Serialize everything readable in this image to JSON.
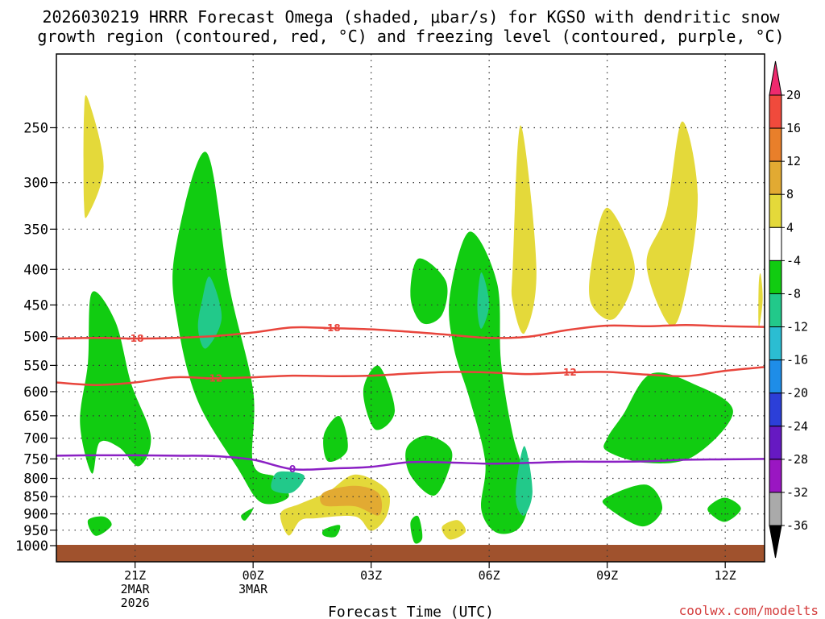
{
  "chart_data": {
    "type": "contour",
    "title_line1": "2026030219 HRRR Forecast Omega (shaded, μbar/s) for KGSO with dendritic snow",
    "title_line2": "growth region (contoured, red, °C) and freezing level (contoured, purple, °C)",
    "xlabel": "Forecast Time (UTC)",
    "credit": "coolwx.com/modelts",
    "x_range_hours": [
      0,
      18
    ],
    "y_axis": "pressure_hPa",
    "y_range": [
      200,
      1000
    ],
    "y_ticks": [
      250,
      300,
      350,
      400,
      450,
      500,
      550,
      600,
      650,
      700,
      750,
      800,
      850,
      900,
      950,
      1000
    ],
    "x_ticks": [
      {
        "hour": 2,
        "lines": [
          "21Z",
          "2MAR",
          "2026"
        ]
      },
      {
        "hour": 5,
        "lines": [
          "00Z",
          "3MAR"
        ]
      },
      {
        "hour": 8,
        "lines": [
          "03Z"
        ]
      },
      {
        "hour": 11,
        "lines": [
          "06Z"
        ]
      },
      {
        "hour": 14,
        "lines": [
          "09Z"
        ]
      },
      {
        "hour": 17,
        "lines": [
          "12Z"
        ]
      }
    ],
    "colorbar": {
      "labels": [
        "20",
        "16",
        "12",
        "8",
        "4",
        "-4",
        "-8",
        "-12",
        "-16",
        "-20",
        "-24",
        "-28",
        "-32",
        "-36"
      ],
      "colors": [
        "#ee2a6e",
        "#f04a3c",
        "#e97f2a",
        "#e2aa32",
        "#e4d93a",
        "#ffffff",
        "#11cc11",
        "#22c98a",
        "#2bbdd2",
        "#1e8de8",
        "#2c3fd8",
        "#6619c2",
        "#9a16c2",
        "#aaaaaa",
        "#000000"
      ]
    },
    "contours": [
      {
        "name": "dendritic growth -18C",
        "label": "-18",
        "color": "#e8453c",
        "points": [
          [
            0,
            503
          ],
          [
            1,
            502
          ],
          [
            2,
            503
          ],
          [
            3,
            502
          ],
          [
            4,
            499
          ],
          [
            5,
            493
          ],
          [
            6,
            485
          ],
          [
            7,
            486
          ],
          [
            8,
            488
          ],
          [
            9,
            492
          ],
          [
            10,
            497
          ],
          [
            11,
            502
          ],
          [
            12,
            500
          ],
          [
            13,
            489
          ],
          [
            14,
            482
          ],
          [
            15,
            483
          ],
          [
            16,
            481
          ],
          [
            17,
            483
          ],
          [
            18,
            484
          ]
        ]
      },
      {
        "name": "dendritic growth -12C",
        "label": "-12",
        "color": "#e8453c",
        "points": [
          [
            0,
            582
          ],
          [
            1,
            587
          ],
          [
            2,
            582
          ],
          [
            3,
            572
          ],
          [
            4,
            574
          ],
          [
            5,
            572
          ],
          [
            6,
            569
          ],
          [
            7,
            570
          ],
          [
            8,
            569
          ],
          [
            9,
            565
          ],
          [
            10,
            562
          ],
          [
            11,
            563
          ],
          [
            12,
            566
          ],
          [
            13,
            563
          ],
          [
            14,
            562
          ],
          [
            15,
            567
          ],
          [
            16,
            570
          ],
          [
            17,
            560
          ],
          [
            18,
            553
          ]
        ]
      },
      {
        "name": "freezing level 0C",
        "label": "0",
        "color": "#8b20c4",
        "points": [
          [
            0,
            742
          ],
          [
            1,
            741
          ],
          [
            2,
            741
          ],
          [
            3,
            742
          ],
          [
            4,
            743
          ],
          [
            5,
            752
          ],
          [
            6,
            776
          ],
          [
            7,
            774
          ],
          [
            8,
            770
          ],
          [
            9,
            758
          ],
          [
            10,
            759
          ],
          [
            11,
            762
          ],
          [
            12,
            760
          ],
          [
            13,
            757
          ],
          [
            14,
            757
          ],
          [
            15,
            756
          ],
          [
            16,
            752
          ],
          [
            17,
            751
          ],
          [
            18,
            750
          ]
        ]
      }
    ],
    "shaded_regions": [
      {
        "omega": "4",
        "color": "#e4d93a",
        "points": [
          [
            0.7,
            240
          ],
          [
            0.8,
            227
          ],
          [
            1.2,
            284
          ],
          [
            0.8,
            334
          ],
          [
            0.7,
            320
          ]
        ]
      },
      {
        "omega": "-4",
        "color": "#11cc11",
        "points": [
          [
            0.6,
            665
          ],
          [
            0.8,
            546
          ],
          [
            0.9,
            432
          ],
          [
            1.5,
            476
          ],
          [
            1.9,
            584
          ],
          [
            2.4,
            696
          ],
          [
            2.1,
            768
          ],
          [
            1.6,
            722
          ],
          [
            1.1,
            710
          ],
          [
            0.9,
            787
          ]
        ]
      },
      {
        "omega": "-4",
        "color": "#11cc11",
        "points": [
          [
            3.0,
            382
          ],
          [
            3.8,
            271
          ],
          [
            4.4,
            425
          ],
          [
            5.0,
            598
          ],
          [
            5.0,
            762
          ],
          [
            5.6,
            798
          ],
          [
            5.9,
            851
          ],
          [
            5.2,
            866
          ],
          [
            4.6,
            772
          ],
          [
            3.6,
            620
          ],
          [
            3.1,
            484
          ]
        ]
      },
      {
        "omega": "-8",
        "color": "#22c98a",
        "points": [
          [
            3.7,
            444
          ],
          [
            3.9,
            410
          ],
          [
            4.2,
            470
          ],
          [
            3.8,
            520
          ],
          [
            3.6,
            487
          ]
        ]
      },
      {
        "omega": "-4",
        "color": "#11cc11",
        "points": [
          [
            6.8,
            692
          ],
          [
            7.2,
            651
          ],
          [
            7.4,
            727
          ],
          [
            6.9,
            756
          ]
        ]
      },
      {
        "omega": "4",
        "color": "#e4d93a",
        "points": [
          [
            5.7,
            898
          ],
          [
            6.2,
            870
          ],
          [
            6.9,
            837
          ],
          [
            7.6,
            790
          ],
          [
            8.4,
            831
          ],
          [
            8.4,
            904
          ],
          [
            8.0,
            952
          ],
          [
            7.6,
            908
          ],
          [
            6.6,
            913
          ],
          [
            6.2,
            920
          ],
          [
            5.9,
            967
          ]
        ]
      },
      {
        "omega": "8",
        "color": "#e2aa32",
        "points": [
          [
            6.8,
            838
          ],
          [
            7.6,
            820
          ],
          [
            8.2,
            842
          ],
          [
            8.2,
            904
          ],
          [
            7.6,
            878
          ],
          [
            6.8,
            875
          ]
        ]
      },
      {
        "omega": "-4",
        "color": "#11cc11",
        "points": [
          [
            7.8,
            598
          ],
          [
            8.2,
            551
          ],
          [
            8.6,
            640
          ],
          [
            8.1,
            680
          ]
        ]
      },
      {
        "omega": "-4",
        "color": "#11cc11",
        "points": [
          [
            8.9,
            724
          ],
          [
            9.4,
            694
          ],
          [
            10.0,
            722
          ],
          [
            10.0,
            770
          ],
          [
            9.6,
            847
          ],
          [
            9.0,
            792
          ]
        ]
      },
      {
        "omega": "-4",
        "color": "#11cc11",
        "points": [
          [
            9.0,
            438
          ],
          [
            9.2,
            386
          ],
          [
            9.9,
            416
          ],
          [
            9.8,
            465
          ],
          [
            9.3,
            478
          ]
        ]
      },
      {
        "omega": "-4",
        "color": "#11cc11",
        "points": [
          [
            10.0,
            437
          ],
          [
            10.5,
            353
          ],
          [
            11.2,
            418
          ],
          [
            11.3,
            543
          ],
          [
            11.6,
            692
          ],
          [
            12.0,
            832
          ],
          [
            11.8,
            938
          ],
          [
            11.2,
            958
          ],
          [
            10.8,
            887
          ],
          [
            10.9,
            757
          ],
          [
            10.5,
            614
          ],
          [
            10.1,
            518
          ]
        ]
      },
      {
        "omega": "-8",
        "color": "#22c98a",
        "points": [
          [
            10.7,
            452
          ],
          [
            10.8,
            404
          ],
          [
            11.0,
            448
          ],
          [
            10.8,
            487
          ]
        ]
      },
      {
        "omega": "-8",
        "color": "#22c98a",
        "points": [
          [
            11.7,
            808
          ],
          [
            11.9,
            719
          ],
          [
            12.1,
            834
          ],
          [
            11.9,
            904
          ],
          [
            11.7,
            875
          ]
        ]
      },
      {
        "omega": "4",
        "color": "#e4d93a",
        "points": [
          [
            11.6,
            395
          ],
          [
            11.8,
            248
          ],
          [
            12.2,
            400
          ],
          [
            11.9,
            494
          ],
          [
            11.6,
            446
          ]
        ]
      },
      {
        "omega": "4",
        "color": "#e4d93a",
        "points": [
          [
            13.6,
            394
          ],
          [
            14.0,
            326
          ],
          [
            14.7,
            397
          ],
          [
            14.2,
            470
          ],
          [
            13.6,
            449
          ]
        ]
      },
      {
        "omega": "4",
        "color": "#e4d93a",
        "points": [
          [
            15.0,
            393
          ],
          [
            15.5,
            331
          ],
          [
            15.9,
            245
          ],
          [
            16.3,
            312
          ],
          [
            16.0,
            429
          ],
          [
            15.6,
            482
          ]
        ]
      },
      {
        "omega": "-4",
        "color": "#11cc11",
        "points": [
          [
            14.0,
            700
          ],
          [
            14.4,
            648
          ],
          [
            15.1,
            566
          ],
          [
            16.2,
            585
          ],
          [
            17.2,
            641
          ],
          [
            16.2,
            743
          ],
          [
            15.0,
            760
          ],
          [
            14.0,
            731
          ]
        ]
      },
      {
        "omega": "-4",
        "color": "#11cc11",
        "points": [
          [
            14.0,
            851
          ],
          [
            15.0,
            817
          ],
          [
            15.4,
            884
          ],
          [
            14.9,
            938
          ],
          [
            14.0,
            880
          ]
        ]
      },
      {
        "omega": "-4",
        "color": "#11cc11",
        "points": [
          [
            16.6,
            876
          ],
          [
            17.0,
            853
          ],
          [
            17.4,
            884
          ],
          [
            17.0,
            924
          ],
          [
            16.6,
            897
          ]
        ]
      },
      {
        "omega": "4",
        "color": "#e4d93a",
        "points": [
          [
            17.85,
            421
          ],
          [
            17.9,
            406
          ],
          [
            17.95,
            443
          ],
          [
            17.85,
            484
          ]
        ]
      },
      {
        "omega": "-4",
        "color": "#11cc11",
        "points": [
          [
            0.8,
            920
          ],
          [
            1.2,
            908
          ],
          [
            1.4,
            935
          ],
          [
            1.0,
            968
          ]
        ]
      },
      {
        "omega": "-4",
        "color": "#11cc11",
        "points": [
          [
            4.7,
            904
          ],
          [
            5.0,
            884
          ],
          [
            4.8,
            920
          ]
        ]
      },
      {
        "omega": "-4",
        "color": "#11cc11",
        "points": [
          [
            6.8,
            948
          ],
          [
            7.2,
            934
          ],
          [
            7.1,
            970
          ],
          [
            6.8,
            968
          ]
        ]
      },
      {
        "omega": "-4",
        "color": "#11cc11",
        "points": [
          [
            9.0,
            926
          ],
          [
            9.2,
            908
          ],
          [
            9.3,
            975
          ],
          [
            9.1,
            990
          ]
        ]
      },
      {
        "omega": "4",
        "color": "#e4d93a",
        "points": [
          [
            9.8,
            940
          ],
          [
            10.2,
            919
          ],
          [
            10.4,
            955
          ],
          [
            10.0,
            980
          ]
        ]
      },
      {
        "omega": "-8",
        "color": "#22c98a",
        "points": [
          [
            5.5,
            800
          ],
          [
            5.7,
            782
          ],
          [
            6.3,
            793
          ],
          [
            6.0,
            838
          ],
          [
            5.5,
            832
          ]
        ]
      }
    ]
  }
}
